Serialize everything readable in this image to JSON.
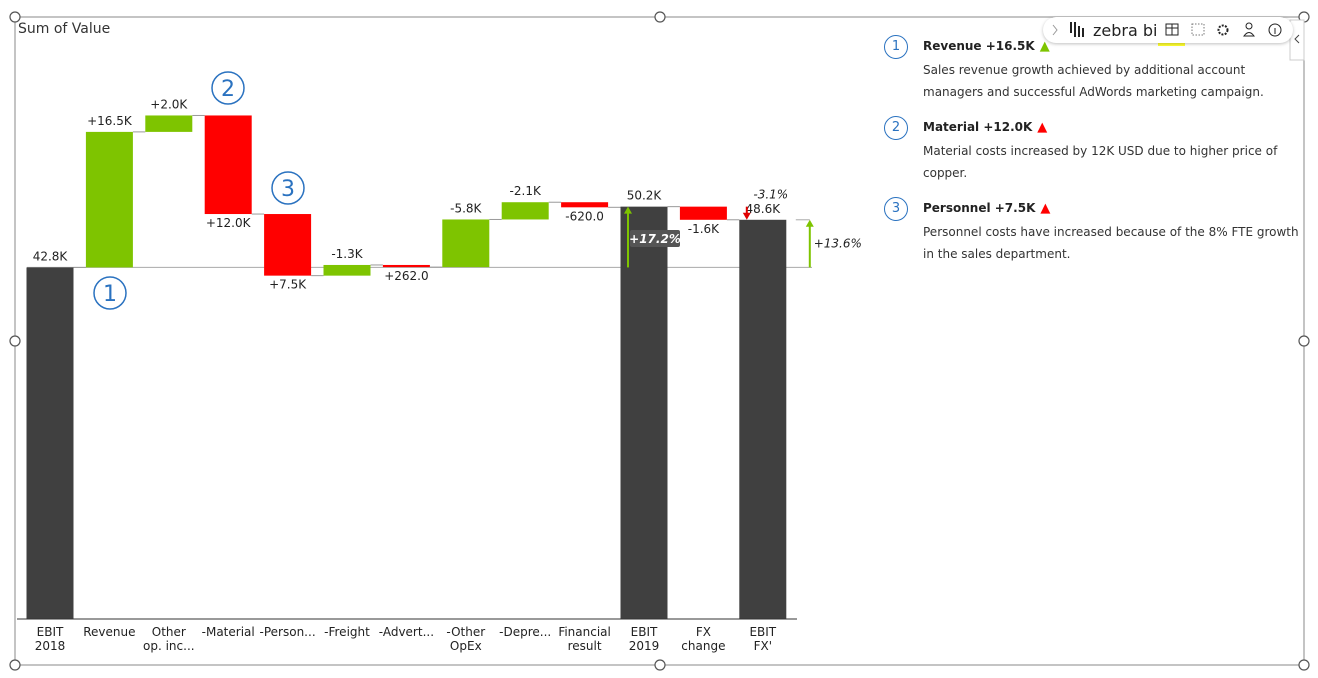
{
  "chart_data": {
    "type": "waterfall",
    "title": "Sum of Value",
    "categories": [
      "EBIT\n2018",
      "Revenue",
      "Other\nop. inc...",
      "-Material",
      "-Person...",
      "-Freight",
      "-Advert...",
      "-Other\nOpEx",
      "-Depre...",
      "Financial\nresult",
      "EBIT\n2019",
      "FX\nchange",
      "EBIT\nFX'"
    ],
    "measure": [
      "total",
      "relative",
      "relative",
      "inverted",
      "inverted",
      "inverted",
      "inverted",
      "inverted",
      "inverted",
      "relative",
      "total",
      "relative",
      "total"
    ],
    "values": [
      42800,
      16500,
      2000,
      12000,
      7500,
      -1300,
      262,
      -5800,
      -2100,
      -620,
      50200,
      -1600,
      48600
    ],
    "value_labels": [
      "42.8K",
      "+16.5K",
      "+2.0K",
      "+12.0K",
      "+7.5K",
      "-1.3K",
      "+262.0",
      "-5.8K",
      "-2.1K",
      "-620.0",
      "50.2K",
      "-1.6K",
      "48.6K"
    ],
    "colors": {
      "total": "#404040",
      "increase": "#7ec400",
      "decrease": "#ff0000"
    },
    "ylim": [
      0,
      70000
    ],
    "variances": [
      {
        "from": 0,
        "to": 10,
        "label": "+17.2%",
        "color": "#7ec400"
      },
      {
        "from": 0,
        "to": 12,
        "label": "+13.6%",
        "color": "#7ec400"
      },
      {
        "from": 10,
        "to": 12,
        "label": "-3.1%",
        "color": "#e00000"
      }
    ],
    "markers": [
      {
        "label": "1",
        "category": 1
      },
      {
        "label": "2",
        "category": 3
      },
      {
        "label": "3",
        "category": 4
      }
    ],
    "comments": [
      {
        "number": "1",
        "title": "Revenue +16.5K",
        "color": "#7ec400",
        "text": "Sales revenue growth achieved by additional account managers and successful AdWords marketing campaign."
      },
      {
        "number": "2",
        "title": "Material +12.0K",
        "color": "#ff0000",
        "text": "Material costs increased by 12K USD due to higher price of copper."
      },
      {
        "number": "3",
        "title": "Personnel +7.5K",
        "color": "#ff0000",
        "text": "Personnel costs have increased because of the 8% FTE growth in the sales department."
      }
    ]
  },
  "toolbar": {
    "logo": "zebra bi"
  }
}
